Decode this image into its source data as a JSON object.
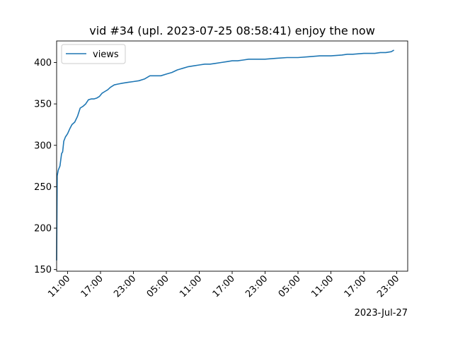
{
  "chart_data": {
    "type": "line",
    "title": "vid #34 (upl. 2023-07-25 08:58:41) enjoy the now",
    "xlabel": "",
    "ylabel": "",
    "x_offset_label": "2023-Jul-27",
    "x_tick_labels": [
      "11:00",
      "17:00",
      "23:00",
      "05:00",
      "11:00",
      "17:00",
      "23:00",
      "05:00",
      "11:00",
      "17:00",
      "23:00"
    ],
    "x_tick_hours": [
      2,
      8,
      14,
      20,
      26,
      32,
      38,
      44,
      50,
      56,
      62
    ],
    "xlim": [
      0,
      64
    ],
    "yticks": [
      150,
      200,
      250,
      300,
      350,
      400
    ],
    "ylim": [
      148,
      426
    ],
    "grid": false,
    "legend": {
      "placement": "top-left",
      "entries": [
        "views"
      ]
    },
    "colors": {
      "series": "#1f77b4"
    },
    "series": [
      {
        "name": "views",
        "x": [
          0.0,
          0.1,
          0.3,
          0.6,
          0.9,
          1.1,
          1.3,
          1.6,
          2.0,
          2.4,
          2.8,
          3.3,
          3.8,
          4.3,
          4.8,
          5.3,
          5.8,
          6.3,
          6.8,
          7.3,
          7.8,
          8.3,
          8.8,
          9.3,
          9.8,
          10.5,
          11.2,
          12.0,
          13.0,
          14.0,
          15.0,
          16.0,
          17.0,
          18.0,
          19.0,
          20.0,
          21.0,
          22.0,
          23.0,
          24.0,
          25.0,
          26.0,
          27.0,
          28.0,
          29.0,
          30.0,
          31.0,
          32.0,
          33.0,
          34.0,
          35.0,
          36.0,
          37.0,
          38.0,
          40.0,
          42.0,
          44.0,
          46.0,
          48.0,
          50.0,
          52.0,
          53.0,
          54.0,
          56.0,
          58.0,
          59.0,
          60.0,
          61.0,
          61.5
        ],
        "y": [
          161,
          263,
          270,
          275,
          290,
          292,
          305,
          310,
          314,
          320,
          325,
          328,
          335,
          345,
          347,
          350,
          355,
          356,
          356,
          357,
          359,
          363,
          365,
          367,
          370,
          373,
          374,
          375,
          376,
          377,
          378,
          380,
          384,
          384,
          384,
          386,
          388,
          391,
          393,
          395,
          396,
          397,
          398,
          398,
          399,
          400,
          401,
          402,
          402,
          403,
          404,
          404,
          404,
          404,
          405,
          406,
          406,
          407,
          408,
          408,
          409,
          410,
          410,
          411,
          411,
          412,
          412,
          413,
          415
        ]
      }
    ]
  }
}
